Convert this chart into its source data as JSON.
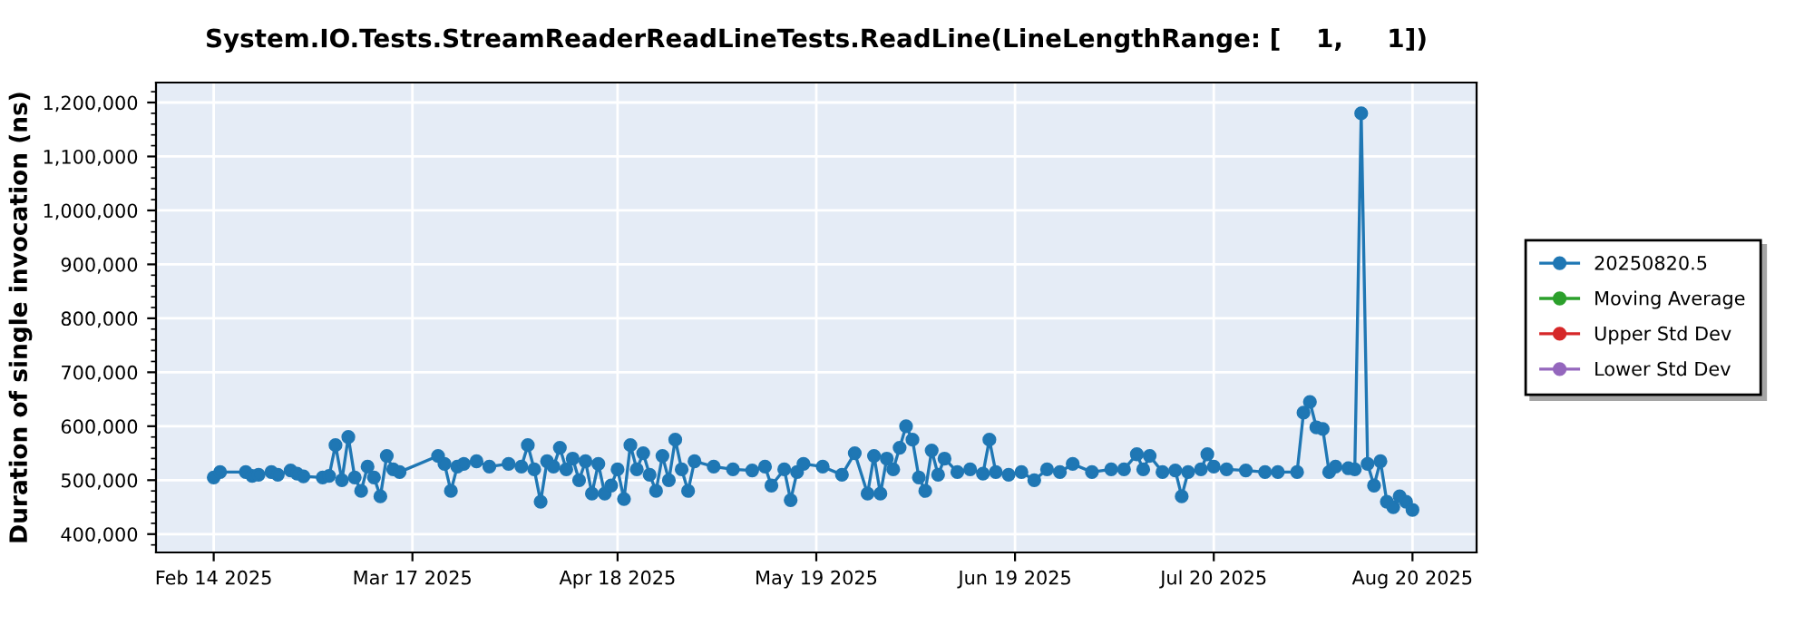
{
  "chart_data": {
    "type": "line",
    "title": "System.IO.Tests.StreamReaderReadLineTests.ReadLine(LineLengthRange: [    1,     1])",
    "ylabel": "Duration of single invocation (ns)",
    "xlim": [
      "2025-02-05",
      "2025-08-30"
    ],
    "ylim": [
      366000,
      1237000
    ],
    "xticks": [
      {
        "value": "2025-02-14",
        "label": "Feb 14 2025"
      },
      {
        "value": "2025-03-17",
        "label": "Mar 17 2025"
      },
      {
        "value": "2025-04-18",
        "label": "Apr 18 2025"
      },
      {
        "value": "2025-05-19",
        "label": "May 19 2025"
      },
      {
        "value": "2025-06-19",
        "label": "Jun 19 2025"
      },
      {
        "value": "2025-07-20",
        "label": "Jul 20 2025"
      },
      {
        "value": "2025-08-20",
        "label": "Aug 20 2025"
      }
    ],
    "yticks": [
      {
        "value": 400000,
        "label": "400,000"
      },
      {
        "value": 500000,
        "label": "500,000"
      },
      {
        "value": 600000,
        "label": "600,000"
      },
      {
        "value": 700000,
        "label": "700,000"
      },
      {
        "value": 800000,
        "label": "800,000"
      },
      {
        "value": 900000,
        "label": "900,000"
      },
      {
        "value": 1000000,
        "label": "1,000,000"
      },
      {
        "value": 1100000,
        "label": "1,100,000"
      },
      {
        "value": 1200000,
        "label": "1,200,000"
      }
    ],
    "grid": true,
    "legend": "right",
    "marker": "circle",
    "line_style": "solid",
    "series": [
      {
        "name": "20250820.5",
        "color": "#1f77b4",
        "x": [
          "2025-02-14",
          "2025-02-15",
          "2025-02-19",
          "2025-02-20",
          "2025-02-21",
          "2025-02-23",
          "2025-02-24",
          "2025-02-26",
          "2025-02-27",
          "2025-02-28",
          "2025-03-03",
          "2025-03-04",
          "2025-03-05",
          "2025-03-06",
          "2025-03-07",
          "2025-03-08",
          "2025-03-09",
          "2025-03-10",
          "2025-03-11",
          "2025-03-12",
          "2025-03-13",
          "2025-03-14",
          "2025-03-15",
          "2025-03-21",
          "2025-03-22",
          "2025-03-23",
          "2025-03-24",
          "2025-03-25",
          "2025-03-27",
          "2025-03-29",
          "2025-04-01",
          "2025-04-03",
          "2025-04-04",
          "2025-04-05",
          "2025-04-06",
          "2025-04-07",
          "2025-04-08",
          "2025-04-09",
          "2025-04-10",
          "2025-04-11",
          "2025-04-12",
          "2025-04-13",
          "2025-04-14",
          "2025-04-15",
          "2025-04-16",
          "2025-04-17",
          "2025-04-18",
          "2025-04-19",
          "2025-04-20",
          "2025-04-21",
          "2025-04-22",
          "2025-04-23",
          "2025-04-24",
          "2025-04-25",
          "2025-04-26",
          "2025-04-27",
          "2025-04-28",
          "2025-04-29",
          "2025-04-30",
          "2025-05-03",
          "2025-05-06",
          "2025-05-09",
          "2025-05-11",
          "2025-05-12",
          "2025-05-14",
          "2025-05-15",
          "2025-05-16",
          "2025-05-17",
          "2025-05-20",
          "2025-05-23",
          "2025-05-25",
          "2025-05-27",
          "2025-05-28",
          "2025-05-29",
          "2025-05-30",
          "2025-05-31",
          "2025-06-01",
          "2025-06-02",
          "2025-06-03",
          "2025-06-04",
          "2025-06-05",
          "2025-06-06",
          "2025-06-07",
          "2025-06-08",
          "2025-06-10",
          "2025-06-12",
          "2025-06-14",
          "2025-06-15",
          "2025-06-16",
          "2025-06-18",
          "2025-06-20",
          "2025-06-22",
          "2025-06-24",
          "2025-06-26",
          "2025-06-28",
          "2025-07-01",
          "2025-07-04",
          "2025-07-06",
          "2025-07-08",
          "2025-07-09",
          "2025-07-10",
          "2025-07-12",
          "2025-07-14",
          "2025-07-15",
          "2025-07-16",
          "2025-07-18",
          "2025-07-19",
          "2025-07-20",
          "2025-07-22",
          "2025-07-25",
          "2025-07-28",
          "2025-07-30",
          "2025-08-02",
          "2025-08-03",
          "2025-08-04",
          "2025-08-05",
          "2025-08-06",
          "2025-08-07",
          "2025-08-08",
          "2025-08-10",
          "2025-08-11",
          "2025-08-12",
          "2025-08-13",
          "2025-08-14",
          "2025-08-15",
          "2025-08-16",
          "2025-08-17",
          "2025-08-18",
          "2025-08-19",
          "2025-08-20"
        ],
        "values": [
          505000,
          515000,
          515000,
          508000,
          510000,
          515000,
          510000,
          518000,
          512000,
          507000,
          505000,
          508000,
          565000,
          500000,
          580000,
          505000,
          480000,
          525000,
          505000,
          470000,
          545000,
          520000,
          515000,
          545000,
          530000,
          480000,
          525000,
          530000,
          535000,
          525000,
          530000,
          525000,
          565000,
          520000,
          460000,
          535000,
          525000,
          560000,
          520000,
          540000,
          500000,
          535000,
          475000,
          530000,
          475000,
          490000,
          520000,
          465000,
          565000,
          520000,
          550000,
          510000,
          480000,
          545000,
          500000,
          575000,
          520000,
          480000,
          535000,
          525000,
          520000,
          518000,
          525000,
          490000,
          520000,
          463000,
          515000,
          530000,
          525000,
          510000,
          550000,
          475000,
          545000,
          475000,
          540000,
          520000,
          560000,
          600000,
          575000,
          505000,
          480000,
          555000,
          510000,
          540000,
          515000,
          520000,
          512000,
          575000,
          515000,
          510000,
          515000,
          500000,
          520000,
          515000,
          530000,
          515000,
          520000,
          520000,
          548000,
          520000,
          545000,
          515000,
          518000,
          470000,
          515000,
          520000,
          548000,
          525000,
          520000,
          518000,
          515000,
          515000,
          515000,
          625000,
          645000,
          598000,
          595000,
          515000,
          525000,
          522000,
          520000,
          1180000,
          530000,
          490000,
          535000,
          460000,
          450000,
          470000,
          460000,
          445000
        ]
      },
      {
        "name": "Moving Average",
        "color": "#2ca02c"
      },
      {
        "name": "Upper Std Dev",
        "color": "#d62728"
      },
      {
        "name": "Lower Std Dev",
        "color": "#9467bd"
      }
    ]
  }
}
